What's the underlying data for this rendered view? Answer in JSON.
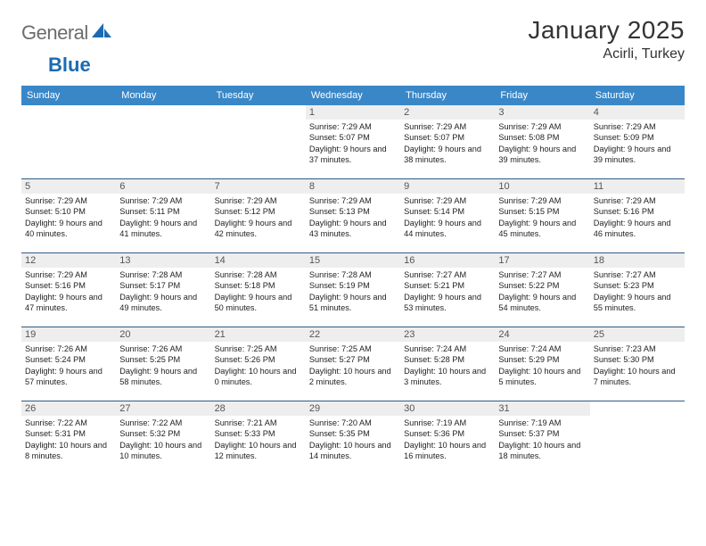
{
  "brand": {
    "part1": "General",
    "part2": "Blue",
    "color_gray": "#6c6c6c",
    "color_blue": "#1a6bb3"
  },
  "title": "January 2025",
  "location": "Acirli, Turkey",
  "header_bg": "#3a87c8",
  "week_border": "#2f5b84",
  "daynum_bg": "#eeeeee",
  "dow": [
    "Sunday",
    "Monday",
    "Tuesday",
    "Wednesday",
    "Thursday",
    "Friday",
    "Saturday"
  ],
  "weeks": [
    [
      {
        "n": "",
        "r": "",
        "s": "",
        "d": ""
      },
      {
        "n": "",
        "r": "",
        "s": "",
        "d": ""
      },
      {
        "n": "",
        "r": "",
        "s": "",
        "d": ""
      },
      {
        "n": "1",
        "r": "Sunrise: 7:29 AM",
        "s": "Sunset: 5:07 PM",
        "d": "Daylight: 9 hours and 37 minutes."
      },
      {
        "n": "2",
        "r": "Sunrise: 7:29 AM",
        "s": "Sunset: 5:07 PM",
        "d": "Daylight: 9 hours and 38 minutes."
      },
      {
        "n": "3",
        "r": "Sunrise: 7:29 AM",
        "s": "Sunset: 5:08 PM",
        "d": "Daylight: 9 hours and 39 minutes."
      },
      {
        "n": "4",
        "r": "Sunrise: 7:29 AM",
        "s": "Sunset: 5:09 PM",
        "d": "Daylight: 9 hours and 39 minutes."
      }
    ],
    [
      {
        "n": "5",
        "r": "Sunrise: 7:29 AM",
        "s": "Sunset: 5:10 PM",
        "d": "Daylight: 9 hours and 40 minutes."
      },
      {
        "n": "6",
        "r": "Sunrise: 7:29 AM",
        "s": "Sunset: 5:11 PM",
        "d": "Daylight: 9 hours and 41 minutes."
      },
      {
        "n": "7",
        "r": "Sunrise: 7:29 AM",
        "s": "Sunset: 5:12 PM",
        "d": "Daylight: 9 hours and 42 minutes."
      },
      {
        "n": "8",
        "r": "Sunrise: 7:29 AM",
        "s": "Sunset: 5:13 PM",
        "d": "Daylight: 9 hours and 43 minutes."
      },
      {
        "n": "9",
        "r": "Sunrise: 7:29 AM",
        "s": "Sunset: 5:14 PM",
        "d": "Daylight: 9 hours and 44 minutes."
      },
      {
        "n": "10",
        "r": "Sunrise: 7:29 AM",
        "s": "Sunset: 5:15 PM",
        "d": "Daylight: 9 hours and 45 minutes."
      },
      {
        "n": "11",
        "r": "Sunrise: 7:29 AM",
        "s": "Sunset: 5:16 PM",
        "d": "Daylight: 9 hours and 46 minutes."
      }
    ],
    [
      {
        "n": "12",
        "r": "Sunrise: 7:29 AM",
        "s": "Sunset: 5:16 PM",
        "d": "Daylight: 9 hours and 47 minutes."
      },
      {
        "n": "13",
        "r": "Sunrise: 7:28 AM",
        "s": "Sunset: 5:17 PM",
        "d": "Daylight: 9 hours and 49 minutes."
      },
      {
        "n": "14",
        "r": "Sunrise: 7:28 AM",
        "s": "Sunset: 5:18 PM",
        "d": "Daylight: 9 hours and 50 minutes."
      },
      {
        "n": "15",
        "r": "Sunrise: 7:28 AM",
        "s": "Sunset: 5:19 PM",
        "d": "Daylight: 9 hours and 51 minutes."
      },
      {
        "n": "16",
        "r": "Sunrise: 7:27 AM",
        "s": "Sunset: 5:21 PM",
        "d": "Daylight: 9 hours and 53 minutes."
      },
      {
        "n": "17",
        "r": "Sunrise: 7:27 AM",
        "s": "Sunset: 5:22 PM",
        "d": "Daylight: 9 hours and 54 minutes."
      },
      {
        "n": "18",
        "r": "Sunrise: 7:27 AM",
        "s": "Sunset: 5:23 PM",
        "d": "Daylight: 9 hours and 55 minutes."
      }
    ],
    [
      {
        "n": "19",
        "r": "Sunrise: 7:26 AM",
        "s": "Sunset: 5:24 PM",
        "d": "Daylight: 9 hours and 57 minutes."
      },
      {
        "n": "20",
        "r": "Sunrise: 7:26 AM",
        "s": "Sunset: 5:25 PM",
        "d": "Daylight: 9 hours and 58 minutes."
      },
      {
        "n": "21",
        "r": "Sunrise: 7:25 AM",
        "s": "Sunset: 5:26 PM",
        "d": "Daylight: 10 hours and 0 minutes."
      },
      {
        "n": "22",
        "r": "Sunrise: 7:25 AM",
        "s": "Sunset: 5:27 PM",
        "d": "Daylight: 10 hours and 2 minutes."
      },
      {
        "n": "23",
        "r": "Sunrise: 7:24 AM",
        "s": "Sunset: 5:28 PM",
        "d": "Daylight: 10 hours and 3 minutes."
      },
      {
        "n": "24",
        "r": "Sunrise: 7:24 AM",
        "s": "Sunset: 5:29 PM",
        "d": "Daylight: 10 hours and 5 minutes."
      },
      {
        "n": "25",
        "r": "Sunrise: 7:23 AM",
        "s": "Sunset: 5:30 PM",
        "d": "Daylight: 10 hours and 7 minutes."
      }
    ],
    [
      {
        "n": "26",
        "r": "Sunrise: 7:22 AM",
        "s": "Sunset: 5:31 PM",
        "d": "Daylight: 10 hours and 8 minutes."
      },
      {
        "n": "27",
        "r": "Sunrise: 7:22 AM",
        "s": "Sunset: 5:32 PM",
        "d": "Daylight: 10 hours and 10 minutes."
      },
      {
        "n": "28",
        "r": "Sunrise: 7:21 AM",
        "s": "Sunset: 5:33 PM",
        "d": "Daylight: 10 hours and 12 minutes."
      },
      {
        "n": "29",
        "r": "Sunrise: 7:20 AM",
        "s": "Sunset: 5:35 PM",
        "d": "Daylight: 10 hours and 14 minutes."
      },
      {
        "n": "30",
        "r": "Sunrise: 7:19 AM",
        "s": "Sunset: 5:36 PM",
        "d": "Daylight: 10 hours and 16 minutes."
      },
      {
        "n": "31",
        "r": "Sunrise: 7:19 AM",
        "s": "Sunset: 5:37 PM",
        "d": "Daylight: 10 hours and 18 minutes."
      },
      {
        "n": "",
        "r": "",
        "s": "",
        "d": ""
      }
    ]
  ]
}
